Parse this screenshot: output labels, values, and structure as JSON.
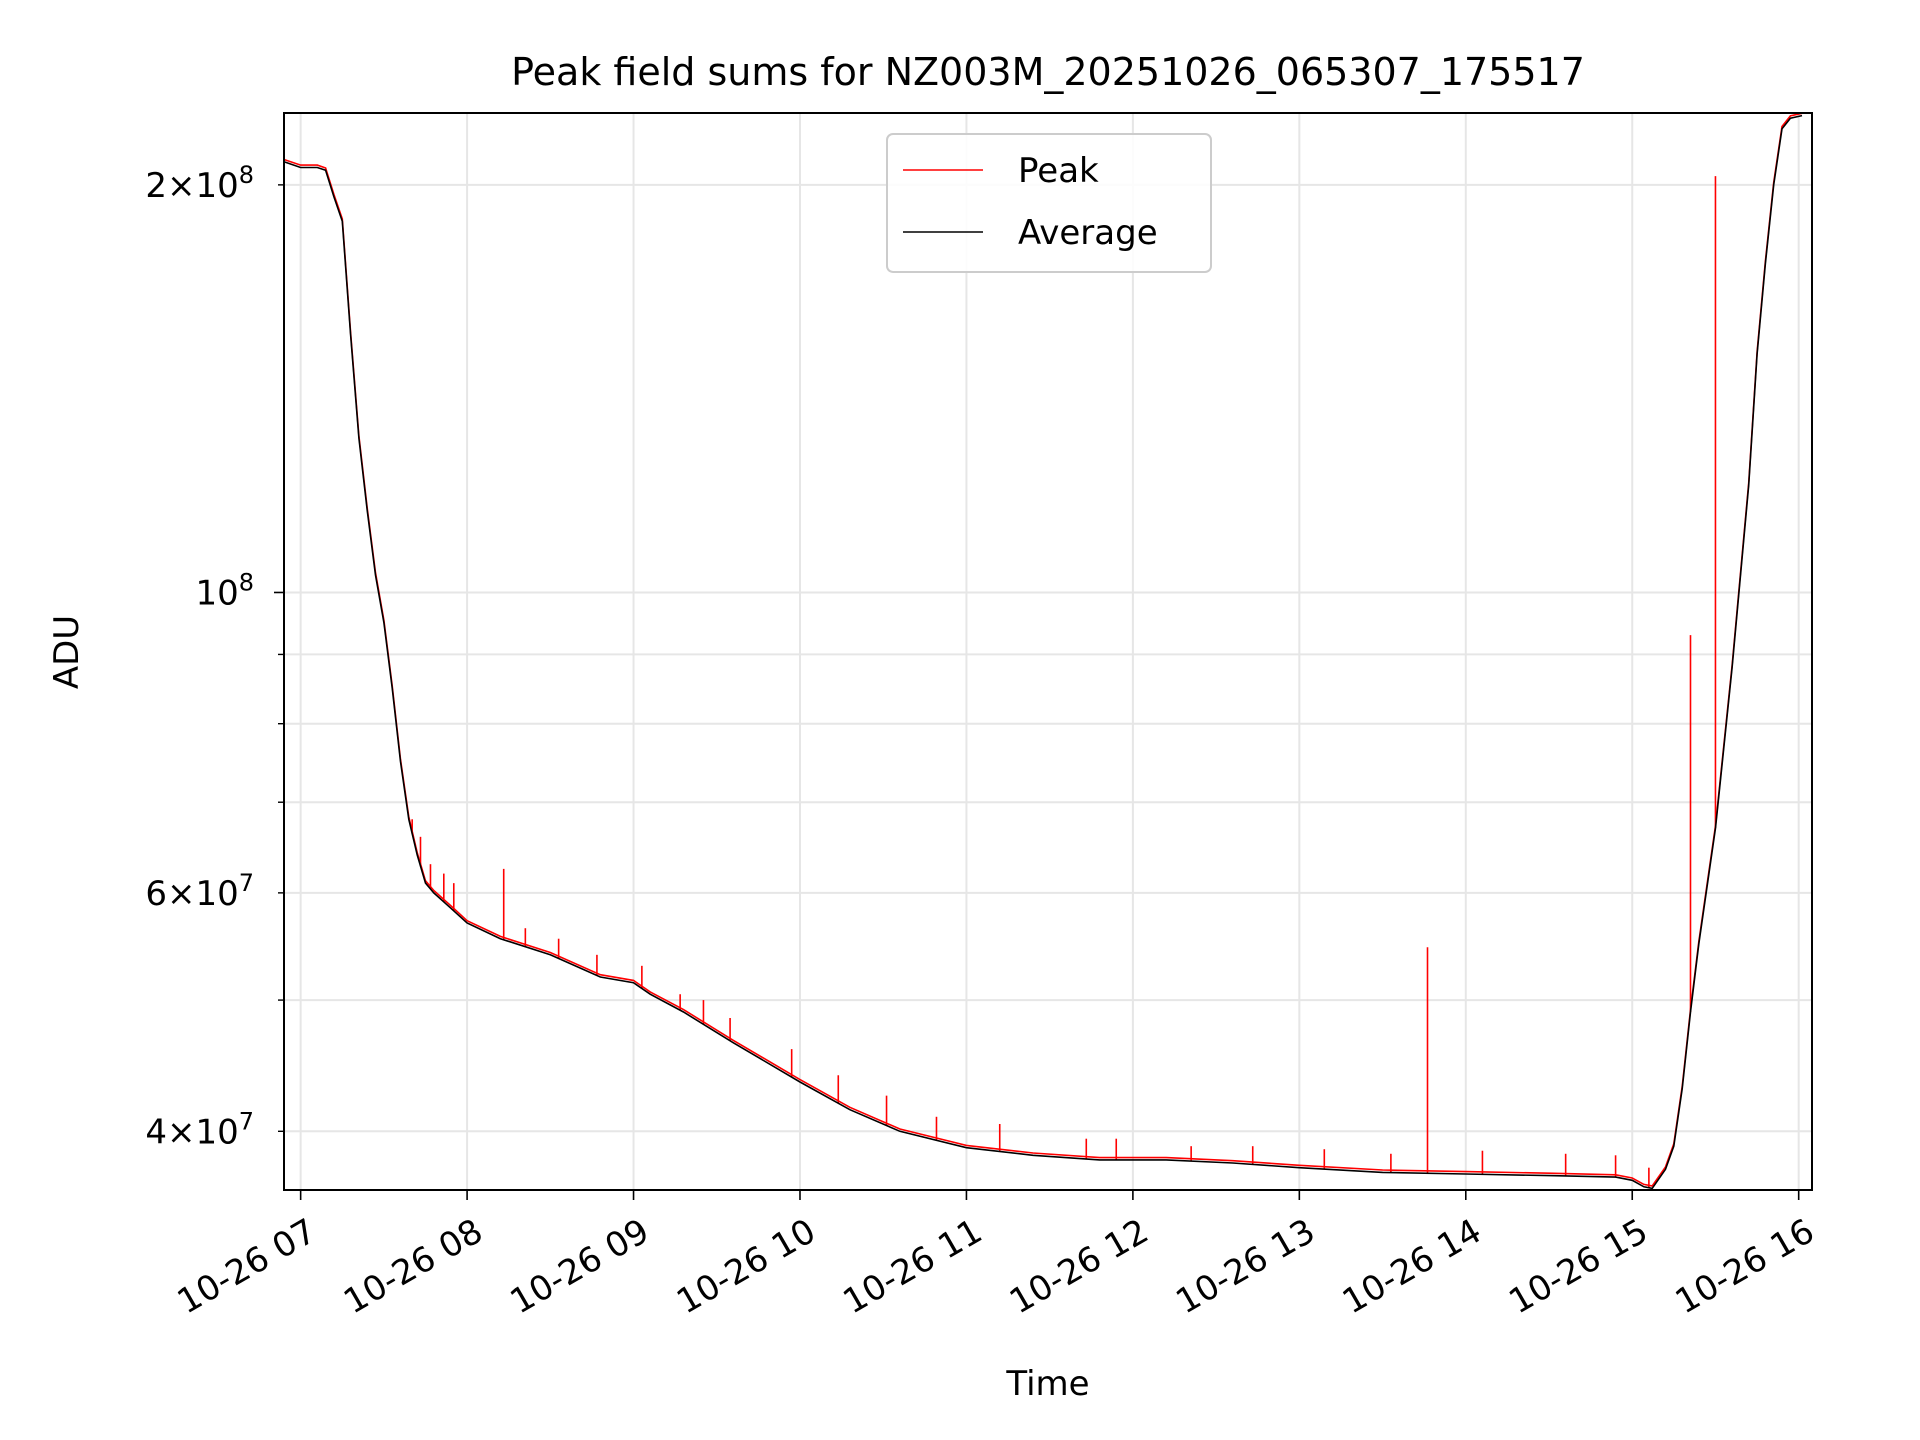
{
  "chart_data": {
    "type": "line",
    "title": "Peak field sums for NZ003M_20251026_065307_175517",
    "xlabel": "Time",
    "ylabel": "ADU",
    "yscale": "log",
    "xlim_hours": [
      6.9,
      16.08
    ],
    "ylim": [
      36200000,
      226000000
    ],
    "x_ticks": [
      {
        "hour": 7,
        "label": "10-26 07"
      },
      {
        "hour": 8,
        "label": "10-26 08"
      },
      {
        "hour": 9,
        "label": "10-26 09"
      },
      {
        "hour": 10,
        "label": "10-26 10"
      },
      {
        "hour": 11,
        "label": "10-26 11"
      },
      {
        "hour": 12,
        "label": "10-26 12"
      },
      {
        "hour": 13,
        "label": "10-26 13"
      },
      {
        "hour": 14,
        "label": "10-26 14"
      },
      {
        "hour": 15,
        "label": "10-26 15"
      },
      {
        "hour": 16,
        "label": "10-26 16"
      }
    ],
    "y_major_ticks": [
      {
        "value": 100000000,
        "base": "10",
        "exp": "8"
      }
    ],
    "y_minor_labeled_ticks": [
      {
        "value": 40000000,
        "mant": "4",
        "base": "10",
        "exp": "7"
      },
      {
        "value": 60000000,
        "mant": "6",
        "base": "10",
        "exp": "7"
      },
      {
        "value": 200000000,
        "mant": "2",
        "base": "10",
        "exp": "8"
      }
    ],
    "y_minor_ticks": [
      50000000,
      70000000,
      80000000,
      90000000
    ],
    "grid": true,
    "legend": {
      "position": "top-center",
      "entries": [
        "Peak",
        "Average"
      ]
    },
    "series": [
      {
        "name": "Average",
        "color": "#000000",
        "points": [
          [
            6.9,
            208000000
          ],
          [
            7.0,
            206000000
          ],
          [
            7.1,
            206000000
          ],
          [
            7.15,
            205000000
          ],
          [
            7.2,
            196000000
          ],
          [
            7.25,
            188000000
          ],
          [
            7.3,
            155000000
          ],
          [
            7.35,
            130000000
          ],
          [
            7.4,
            115000000
          ],
          [
            7.45,
            103000000
          ],
          [
            7.5,
            95000000
          ],
          [
            7.55,
            85000000
          ],
          [
            7.6,
            75000000
          ],
          [
            7.65,
            68000000
          ],
          [
            7.7,
            64000000
          ],
          [
            7.75,
            61000000
          ],
          [
            7.8,
            60000000
          ],
          [
            7.9,
            58500000
          ],
          [
            8.0,
            57000000
          ],
          [
            8.2,
            55500000
          ],
          [
            8.5,
            54000000
          ],
          [
            8.8,
            52000000
          ],
          [
            9.0,
            51500000
          ],
          [
            9.1,
            50500000
          ],
          [
            9.3,
            49000000
          ],
          [
            9.6,
            46500000
          ],
          [
            10.0,
            43500000
          ],
          [
            10.3,
            41500000
          ],
          [
            10.6,
            40000000
          ],
          [
            11.0,
            38900000
          ],
          [
            11.4,
            38400000
          ],
          [
            11.8,
            38100000
          ],
          [
            12.2,
            38100000
          ],
          [
            12.6,
            37900000
          ],
          [
            13.0,
            37600000
          ],
          [
            13.5,
            37300000
          ],
          [
            14.0,
            37200000
          ],
          [
            14.5,
            37100000
          ],
          [
            14.9,
            37000000
          ],
          [
            15.0,
            36800000
          ],
          [
            15.07,
            36400000
          ],
          [
            15.12,
            36300000
          ],
          [
            15.2,
            37500000
          ],
          [
            15.25,
            39000000
          ],
          [
            15.3,
            43000000
          ],
          [
            15.35,
            49000000
          ],
          [
            15.4,
            55000000
          ],
          [
            15.5,
            67000000
          ],
          [
            15.6,
            88000000
          ],
          [
            15.7,
            120000000
          ],
          [
            15.75,
            150000000
          ],
          [
            15.8,
            175000000
          ],
          [
            15.85,
            200000000
          ],
          [
            15.9,
            220000000
          ],
          [
            15.95,
            224000000
          ],
          [
            16.02,
            225000000
          ]
        ]
      },
      {
        "name": "Peak",
        "color": "#ff0000",
        "spikes": [
          [
            7.67,
            68000000
          ],
          [
            7.72,
            66000000
          ],
          [
            7.78,
            63000000
          ],
          [
            7.86,
            62000000
          ],
          [
            7.92,
            61000000
          ],
          [
            8.22,
            62500000
          ],
          [
            8.35,
            56500000
          ],
          [
            8.55,
            55500000
          ],
          [
            8.78,
            54000000
          ],
          [
            9.05,
            53000000
          ],
          [
            9.28,
            50500000
          ],
          [
            9.42,
            50000000
          ],
          [
            9.58,
            48500000
          ],
          [
            9.95,
            46000000
          ],
          [
            10.23,
            44000000
          ],
          [
            10.52,
            42500000
          ],
          [
            10.82,
            41000000
          ],
          [
            11.2,
            40500000
          ],
          [
            11.72,
            39500000
          ],
          [
            11.9,
            39500000
          ],
          [
            12.35,
            39000000
          ],
          [
            12.72,
            39000000
          ],
          [
            13.15,
            38800000
          ],
          [
            13.55,
            38500000
          ],
          [
            13.77,
            54700000
          ],
          [
            14.1,
            38700000
          ],
          [
            14.6,
            38500000
          ],
          [
            14.9,
            38400000
          ],
          [
            15.1,
            37600000
          ],
          [
            15.35,
            93000000
          ],
          [
            15.5,
            203000000
          ]
        ]
      }
    ]
  }
}
